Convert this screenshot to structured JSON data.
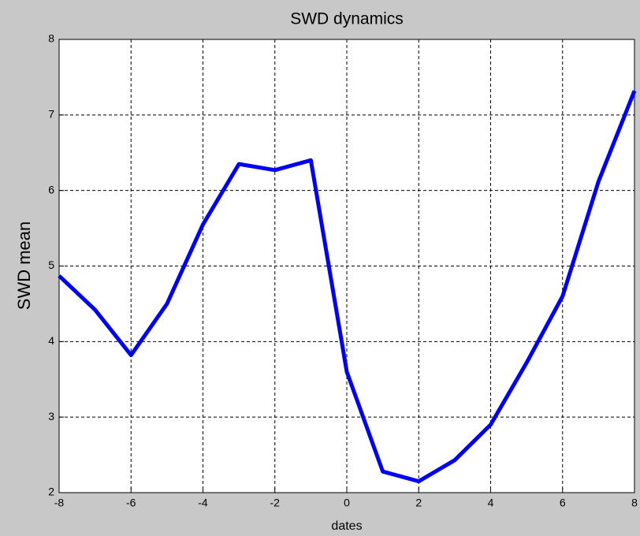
{
  "chart_data": {
    "type": "line",
    "title": "SWD dynamics",
    "x_label": "dates",
    "y_label": "SWD mean",
    "x": [
      -8,
      -7,
      -6,
      -5,
      -4,
      -3,
      -2,
      -1,
      0,
      1,
      2,
      3,
      4,
      5,
      6,
      7,
      8
    ],
    "series": [
      {
        "name": "SWD mean",
        "color": "#0000ff",
        "values": [
          4.87,
          4.42,
          3.82,
          4.5,
          5.55,
          6.35,
          6.27,
          6.4,
          3.6,
          2.28,
          2.15,
          2.43,
          2.9,
          3.72,
          4.6,
          6.12,
          7.32
        ]
      }
    ],
    "xlim": [
      -8,
      8
    ],
    "xticks": [
      -8,
      -6,
      -4,
      -2,
      0,
      2,
      4,
      6,
      8
    ],
    "ylim": [
      2,
      8
    ],
    "yticks": [
      2,
      3,
      4,
      5,
      6,
      7,
      8
    ],
    "grid": true
  }
}
